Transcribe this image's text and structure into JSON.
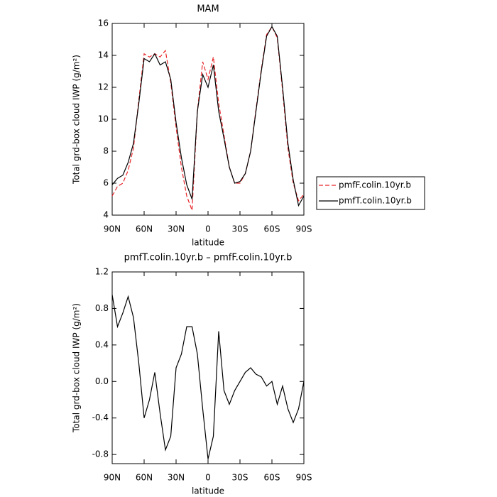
{
  "chart_data": [
    {
      "type": "line",
      "title": "MAM",
      "ylabel": "Total grd-box cloud IWP (g/m²)",
      "xlabel": "latitude",
      "x": [
        90,
        85,
        80,
        75,
        70,
        65,
        60,
        55,
        50,
        45,
        40,
        35,
        30,
        25,
        20,
        15,
        10,
        5,
        0,
        -5,
        -10,
        -15,
        -20,
        -25,
        -30,
        -35,
        -40,
        -45,
        -50,
        -55,
        -60,
        -65,
        -70,
        -75,
        -80,
        -85,
        -90
      ],
      "series": [
        {
          "name": "pmfF.colin.10yr.b",
          "color": "#e8262a",
          "line_style": "dashed",
          "values": [
            5.2,
            5.8,
            6.0,
            6.8,
            8.2,
            11.2,
            14.1,
            13.9,
            14.1,
            13.9,
            14.3,
            12.3,
            9.5,
            7.0,
            5.2,
            4.3,
            10.5,
            13.6,
            12.5,
            13.9,
            11.0,
            9.0,
            7.0,
            6.0,
            6.0,
            6.6,
            8.0,
            10.6,
            13.1,
            15.3,
            15.8,
            15.1,
            11.8,
            8.2,
            6.0,
            4.9,
            5.3
          ]
        },
        {
          "name": "pmfT.colin.10yr.b",
          "color": "#000000",
          "line_style": "solid",
          "values": [
            5.9,
            6.3,
            6.5,
            7.3,
            8.5,
            11.0,
            13.8,
            13.6,
            14.1,
            13.4,
            13.6,
            12.5,
            9.8,
            7.6,
            5.9,
            5.0,
            10.5,
            12.8,
            12.0,
            13.4,
            10.5,
            8.8,
            7.0,
            6.0,
            6.1,
            6.6,
            8.0,
            10.5,
            13.0,
            15.2,
            15.8,
            15.2,
            12.0,
            8.5,
            6.2,
            4.6,
            5.2
          ]
        }
      ],
      "xlim": [
        90,
        -90
      ],
      "xticks": [
        {
          "value": 90,
          "label": "90N"
        },
        {
          "value": 60,
          "label": "60N"
        },
        {
          "value": 30,
          "label": "30N"
        },
        {
          "value": 0,
          "label": "0"
        },
        {
          "value": -30,
          "label": "30S"
        },
        {
          "value": -60,
          "label": "60S"
        },
        {
          "value": -90,
          "label": "90S"
        }
      ],
      "ylim": [
        4,
        16
      ],
      "yticks": [
        4,
        6,
        8,
        10,
        12,
        14,
        16
      ],
      "legend": "right"
    },
    {
      "type": "line",
      "title": "pmfT.colin.10yr.b – pmfF.colin.10yr.b",
      "ylabel": "Total grd-box cloud IWP (g/m²)",
      "xlabel": "latitude",
      "x": [
        90,
        85,
        80,
        75,
        70,
        65,
        60,
        55,
        50,
        45,
        40,
        35,
        30,
        25,
        20,
        15,
        10,
        5,
        0,
        -5,
        -10,
        -15,
        -20,
        -25,
        -30,
        -35,
        -40,
        -45,
        -50,
        -55,
        -60,
        -65,
        -70,
        -75,
        -80,
        -85,
        -90
      ],
      "series": [
        {
          "color": "#000000",
          "line_style": "solid",
          "values": [
            0.95,
            0.6,
            0.75,
            0.93,
            0.7,
            0.2,
            -0.4,
            -0.2,
            0.1,
            -0.35,
            -0.75,
            -0.6,
            0.15,
            0.3,
            0.6,
            0.6,
            0.3,
            -0.3,
            -0.85,
            -0.6,
            0.55,
            -0.1,
            -0.25,
            -0.1,
            0.0,
            0.1,
            0.15,
            0.08,
            0.05,
            -0.05,
            0.0,
            -0.25,
            -0.05,
            -0.3,
            -0.45,
            -0.3,
            0.0
          ]
        }
      ],
      "xlim": [
        90,
        -90
      ],
      "xticks": [
        {
          "value": 90,
          "label": "90N"
        },
        {
          "value": 60,
          "label": "60N"
        },
        {
          "value": 30,
          "label": "30N"
        },
        {
          "value": 0,
          "label": "0"
        },
        {
          "value": -30,
          "label": "30S"
        },
        {
          "value": -60,
          "label": "60S"
        },
        {
          "value": -90,
          "label": "90S"
        }
      ],
      "ylim": [
        -0.9,
        1.2
      ],
      "yticks": [
        -0.8,
        -0.4,
        {
          "value": 0,
          "label": "0.0"
        },
        0.4,
        0.8,
        1.2
      ]
    }
  ]
}
